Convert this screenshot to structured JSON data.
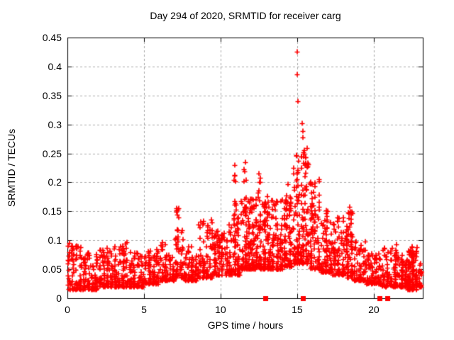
{
  "figure": {
    "background": "#ffffff",
    "text_color": "#000000"
  },
  "chart_data": {
    "type": "scatter",
    "title": "Day 294 of 2020, SRMTID for receiver carg",
    "xlabel": "GPS time / hours",
    "ylabel": "SRMTID / TECUs",
    "xlim": [
      0,
      23.2
    ],
    "ylim": [
      0,
      0.45
    ],
    "xticks": [
      0,
      5,
      10,
      15,
      20
    ],
    "xtick_labels": [
      "0",
      "5",
      "10",
      "15",
      "20"
    ],
    "yticks": [
      0,
      0.05,
      0.1,
      0.15,
      0.2,
      0.25,
      0.3,
      0.35,
      0.4,
      0.45
    ],
    "ytick_labels": [
      "0",
      "0.05",
      "0.1",
      "0.15",
      "0.2",
      "0.25",
      "0.3",
      "0.35",
      "0.4",
      "0.45"
    ],
    "grid": true,
    "grid_style": "dashed",
    "grid_color": "#a8a8a8",
    "axis_color": "#000000",
    "legend": "none",
    "marker": "plus",
    "marker_color": "#ff0000",
    "seed": 20294,
    "series": [
      {
        "name": "SRMTID",
        "outlier_points": [
          [
            15.0,
            0.425
          ],
          [
            15.02,
            0.386
          ],
          [
            15.05,
            0.34
          ],
          [
            15.35,
            0.302
          ],
          [
            15.36,
            0.288
          ],
          [
            15.38,
            0.278
          ],
          [
            15.42,
            0.252
          ],
          [
            15.55,
            0.243
          ],
          [
            15.57,
            0.232
          ],
          [
            15.3,
            0.225
          ],
          [
            11.62,
            0.235
          ],
          [
            11.55,
            0.222
          ],
          [
            10.95,
            0.23
          ],
          [
            12.5,
            0.215
          ],
          [
            14.38,
            0.197
          ],
          [
            7.15,
            0.155
          ],
          [
            18.42,
            0.158
          ],
          [
            16.9,
            0.152
          ],
          [
            0.15,
            0.095
          ],
          [
            3.9,
            0.096
          ]
        ],
        "zero_flag_points_hours": [
          12.9,
          15.38,
          20.38,
          20.9
        ],
        "density_segments": [
          [
            0.0,
            1.0,
            0.015,
            0.1,
            85
          ],
          [
            1.0,
            2.0,
            0.015,
            0.08,
            85
          ],
          [
            2.0,
            3.0,
            0.02,
            0.09,
            85
          ],
          [
            3.0,
            4.0,
            0.02,
            0.095,
            85
          ],
          [
            4.0,
            5.0,
            0.02,
            0.08,
            85
          ],
          [
            5.0,
            6.0,
            0.025,
            0.085,
            85
          ],
          [
            6.0,
            6.6,
            0.03,
            0.1,
            50
          ],
          [
            6.6,
            7.0,
            0.03,
            0.075,
            30
          ],
          [
            7.0,
            7.6,
            0.035,
            0.12,
            45
          ],
          [
            7.6,
            8.5,
            0.03,
            0.09,
            75
          ],
          [
            8.5,
            9.5,
            0.035,
            0.135,
            85
          ],
          [
            9.5,
            10.5,
            0.04,
            0.13,
            90
          ],
          [
            10.5,
            11.3,
            0.04,
            0.155,
            85
          ],
          [
            11.3,
            12.0,
            0.05,
            0.19,
            85
          ],
          [
            12.0,
            12.7,
            0.05,
            0.18,
            85
          ],
          [
            12.7,
            13.3,
            0.05,
            0.165,
            75
          ],
          [
            13.3,
            14.1,
            0.05,
            0.175,
            80
          ],
          [
            14.1,
            14.7,
            0.055,
            0.18,
            75
          ],
          [
            14.7,
            15.2,
            0.06,
            0.24,
            60
          ],
          [
            15.2,
            15.8,
            0.06,
            0.26,
            70
          ],
          [
            15.8,
            16.5,
            0.05,
            0.22,
            75
          ],
          [
            16.5,
            17.3,
            0.045,
            0.15,
            80
          ],
          [
            17.3,
            18.1,
            0.04,
            0.14,
            80
          ],
          [
            18.1,
            18.7,
            0.035,
            0.15,
            60
          ],
          [
            18.7,
            19.5,
            0.03,
            0.1,
            70
          ],
          [
            19.5,
            20.5,
            0.025,
            0.08,
            85
          ],
          [
            20.5,
            21.5,
            0.02,
            0.09,
            85
          ],
          [
            21.5,
            22.2,
            0.02,
            0.075,
            70
          ],
          [
            22.2,
            22.9,
            0.015,
            0.09,
            95
          ],
          [
            22.9,
            23.15,
            0.02,
            0.06,
            25
          ]
        ],
        "spike_columns": [
          [
            7.18,
            0.2,
            0.08,
            0.155,
            12
          ],
          [
            9.4,
            0.2,
            0.08,
            0.14,
            8
          ],
          [
            10.15,
            0.25,
            0.08,
            0.13,
            8
          ],
          [
            10.95,
            0.15,
            0.12,
            0.23,
            10
          ],
          [
            11.6,
            0.15,
            0.12,
            0.235,
            14
          ],
          [
            12.5,
            0.18,
            0.12,
            0.215,
            12
          ],
          [
            13.0,
            0.2,
            0.1,
            0.185,
            10
          ],
          [
            13.65,
            0.2,
            0.1,
            0.185,
            8
          ],
          [
            14.35,
            0.15,
            0.12,
            0.197,
            10
          ],
          [
            15.0,
            0.12,
            0.1,
            0.26,
            12
          ],
          [
            15.45,
            0.2,
            0.1,
            0.3,
            16
          ],
          [
            15.95,
            0.2,
            0.08,
            0.22,
            10
          ],
          [
            16.9,
            0.2,
            0.08,
            0.152,
            8
          ],
          [
            18.4,
            0.3,
            0.07,
            0.158,
            12
          ],
          [
            21.5,
            0.15,
            0.06,
            0.093,
            5
          ],
          [
            22.45,
            0.25,
            0.05,
            0.09,
            8
          ]
        ]
      }
    ]
  }
}
